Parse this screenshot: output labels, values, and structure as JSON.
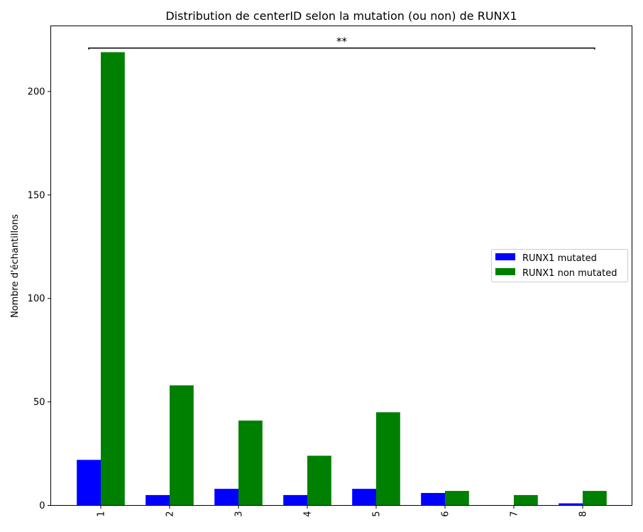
{
  "chart_data": {
    "type": "bar",
    "title": "Distribution de centerID selon la mutation (ou non) de RUNX1",
    "xlabel": "",
    "ylabel": "Nombre d'échantillons",
    "categories": [
      "1",
      "2",
      "3",
      "4",
      "5",
      "6",
      "7",
      "8"
    ],
    "series": [
      {
        "name": "RUNX1 mutated",
        "color": "#0000ff",
        "values": [
          22,
          5,
          8,
          5,
          8,
          6,
          0,
          1
        ]
      },
      {
        "name": "RUNX1 non mutated",
        "color": "#008000",
        "values": [
          219,
          58,
          41,
          24,
          45,
          7,
          5,
          7
        ]
      }
    ],
    "ylim": [
      0,
      231.7
    ],
    "yticks": [
      0,
      50,
      100,
      150,
      200
    ],
    "legend_position": "center-right",
    "grid": false,
    "x_tick_rotation": 90,
    "annotation": {
      "text": "**",
      "y": 221,
      "from_category": "1",
      "to_category": "8"
    }
  }
}
